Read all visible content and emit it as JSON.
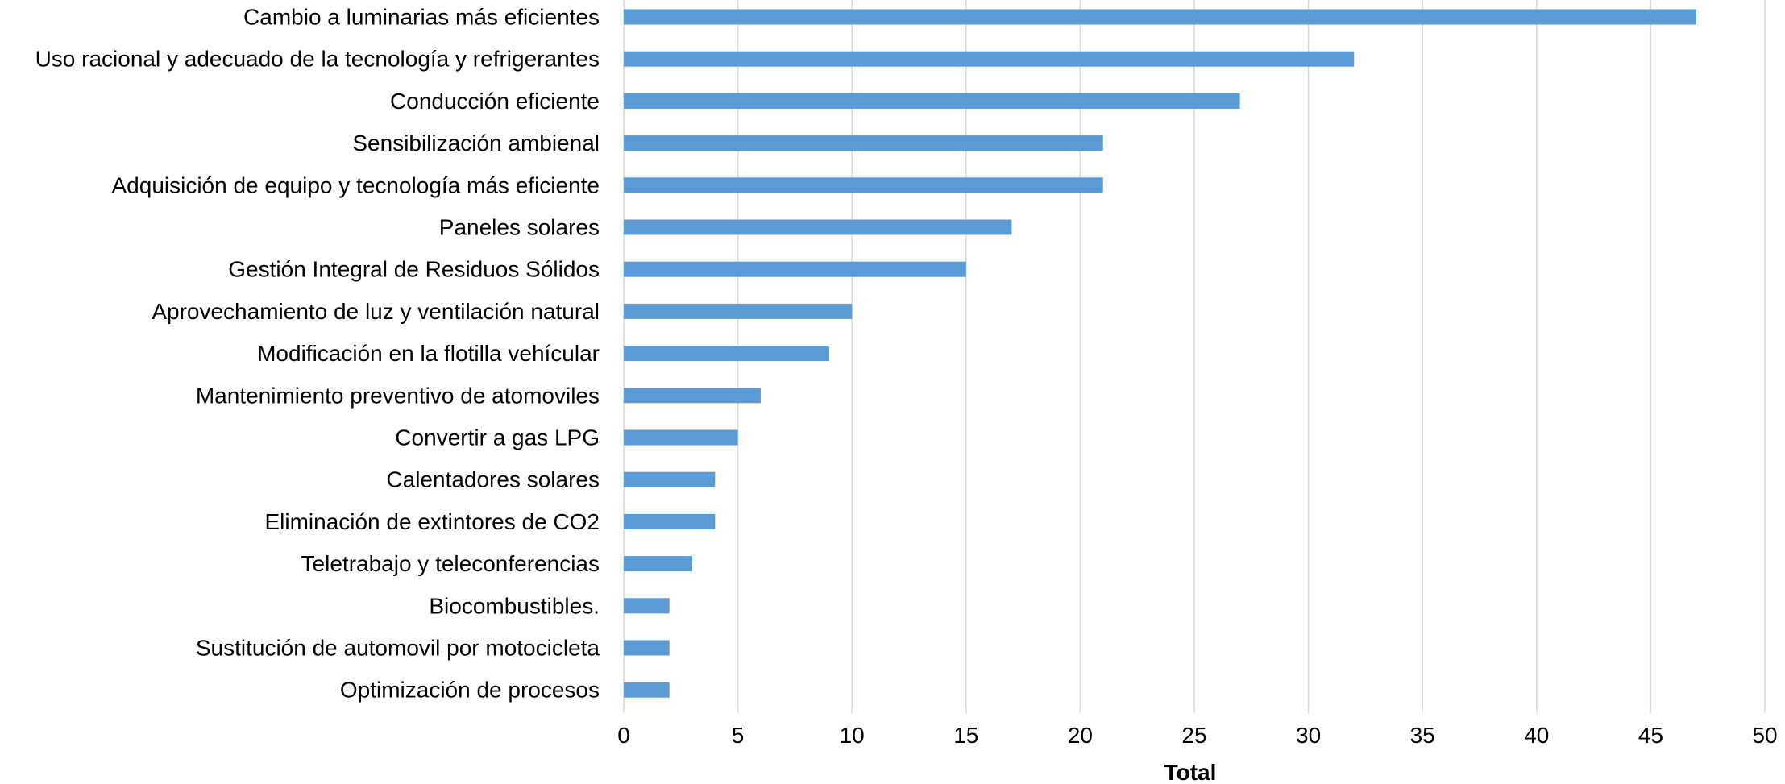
{
  "chart_data": {
    "type": "bar",
    "orientation": "horizontal",
    "categories": [
      "Cambio a luminarias más eficientes",
      "Uso racional y adecuado de la tecnología y refrigerantes",
      "Conducción eficiente",
      "Sensibilización ambienal ",
      "Adquisición de equipo y tecnología más eficiente",
      "Paneles solares",
      "Gestión Integral de Residuos Sólidos",
      "Aprovechamiento de luz y ventilación natural ",
      "Modificación en la flotilla vehícular",
      "Mantenimiento preventivo de atomoviles",
      "Convertir a gas LPG",
      "Calentadores solares",
      "Eliminación de extintores de CO2",
      "Teletrabajo y teleconferencias",
      "Biocombustibles.",
      "Sustitución de automovil por motocicleta",
      "Optimización de procesos"
    ],
    "values": [
      47,
      32,
      27,
      21,
      21,
      17,
      15,
      10,
      9,
      6,
      5,
      4,
      4,
      3,
      2,
      2,
      2
    ],
    "title": "",
    "xlabel": "Total",
    "ylabel": "",
    "xlim": [
      0,
      50
    ],
    "xticks": [
      0,
      5,
      10,
      15,
      20,
      25,
      30,
      35,
      40,
      45,
      50
    ],
    "grid": "vertical",
    "legend": "none",
    "bar_color": "#5B9BD5",
    "grid_color": "#D9D9D9"
  }
}
